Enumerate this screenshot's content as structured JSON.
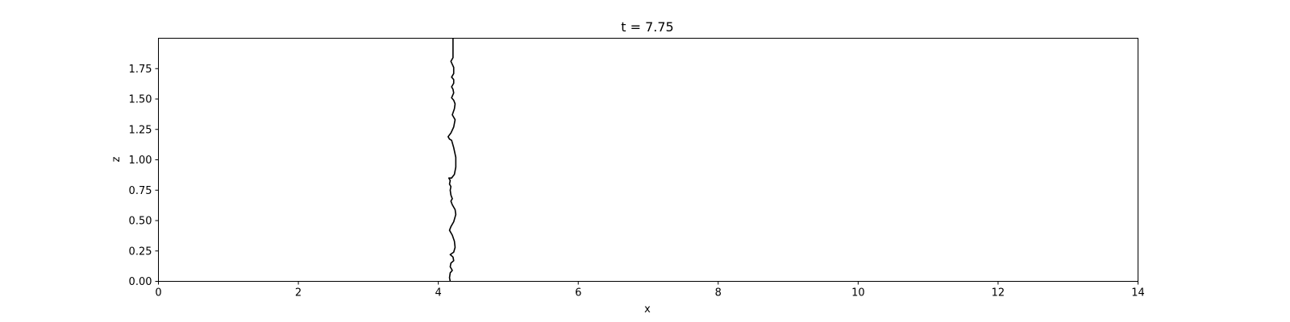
{
  "chart_data": {
    "type": "line",
    "title": "t = 7.75",
    "xlabel": "x",
    "ylabel": "z",
    "xlim": [
      0,
      14
    ],
    "ylim": [
      0,
      2.0
    ],
    "xticks": [
      0,
      2,
      4,
      6,
      8,
      10,
      12,
      14
    ],
    "xtick_labels": [
      "0",
      "2",
      "4",
      "6",
      "8",
      "10",
      "12",
      "14"
    ],
    "yticks": [
      0,
      0.25,
      0.5,
      0.75,
      1.0,
      1.25,
      1.5,
      1.75
    ],
    "ytick_labels": [
      "0.00",
      "0.25",
      "0.50",
      "0.75",
      "1.00",
      "1.25",
      "1.50",
      "1.75"
    ],
    "grid": false,
    "legend": "none",
    "series": [
      {
        "color": "#000000",
        "points": [
          [
            4.17,
            0.0
          ],
          [
            4.16,
            0.03
          ],
          [
            4.17,
            0.07
          ],
          [
            4.2,
            0.09
          ],
          [
            4.17,
            0.12
          ],
          [
            4.18,
            0.15
          ],
          [
            4.22,
            0.17
          ],
          [
            4.21,
            0.2
          ],
          [
            4.17,
            0.22
          ],
          [
            4.22,
            0.24
          ],
          [
            4.24,
            0.28
          ],
          [
            4.23,
            0.33
          ],
          [
            4.2,
            0.38
          ],
          [
            4.16,
            0.42
          ],
          [
            4.18,
            0.45
          ],
          [
            4.22,
            0.49
          ],
          [
            4.25,
            0.55
          ],
          [
            4.24,
            0.59
          ],
          [
            4.2,
            0.63
          ],
          [
            4.18,
            0.66
          ],
          [
            4.2,
            0.68
          ],
          [
            4.18,
            0.71
          ],
          [
            4.17,
            0.75
          ],
          [
            4.18,
            0.78
          ],
          [
            4.16,
            0.8
          ],
          [
            4.17,
            0.83
          ],
          [
            4.15,
            0.85
          ],
          [
            4.19,
            0.85
          ],
          [
            4.23,
            0.88
          ],
          [
            4.25,
            0.94
          ],
          [
            4.25,
            1.02
          ],
          [
            4.22,
            1.1
          ],
          [
            4.19,
            1.16
          ],
          [
            4.16,
            1.17
          ],
          [
            4.14,
            1.19
          ],
          [
            4.18,
            1.22
          ],
          [
            4.22,
            1.27
          ],
          [
            4.24,
            1.33
          ],
          [
            4.2,
            1.37
          ],
          [
            4.23,
            1.42
          ],
          [
            4.24,
            1.46
          ],
          [
            4.22,
            1.49
          ],
          [
            4.19,
            1.51
          ],
          [
            4.22,
            1.55
          ],
          [
            4.21,
            1.58
          ],
          [
            4.19,
            1.6
          ],
          [
            4.22,
            1.63
          ],
          [
            4.22,
            1.66
          ],
          [
            4.19,
            1.68
          ],
          [
            4.22,
            1.71
          ],
          [
            4.22,
            1.76
          ],
          [
            4.18,
            1.81
          ],
          [
            4.21,
            1.84
          ],
          [
            4.21,
            1.92
          ],
          [
            4.21,
            2.0
          ]
        ]
      }
    ]
  }
}
